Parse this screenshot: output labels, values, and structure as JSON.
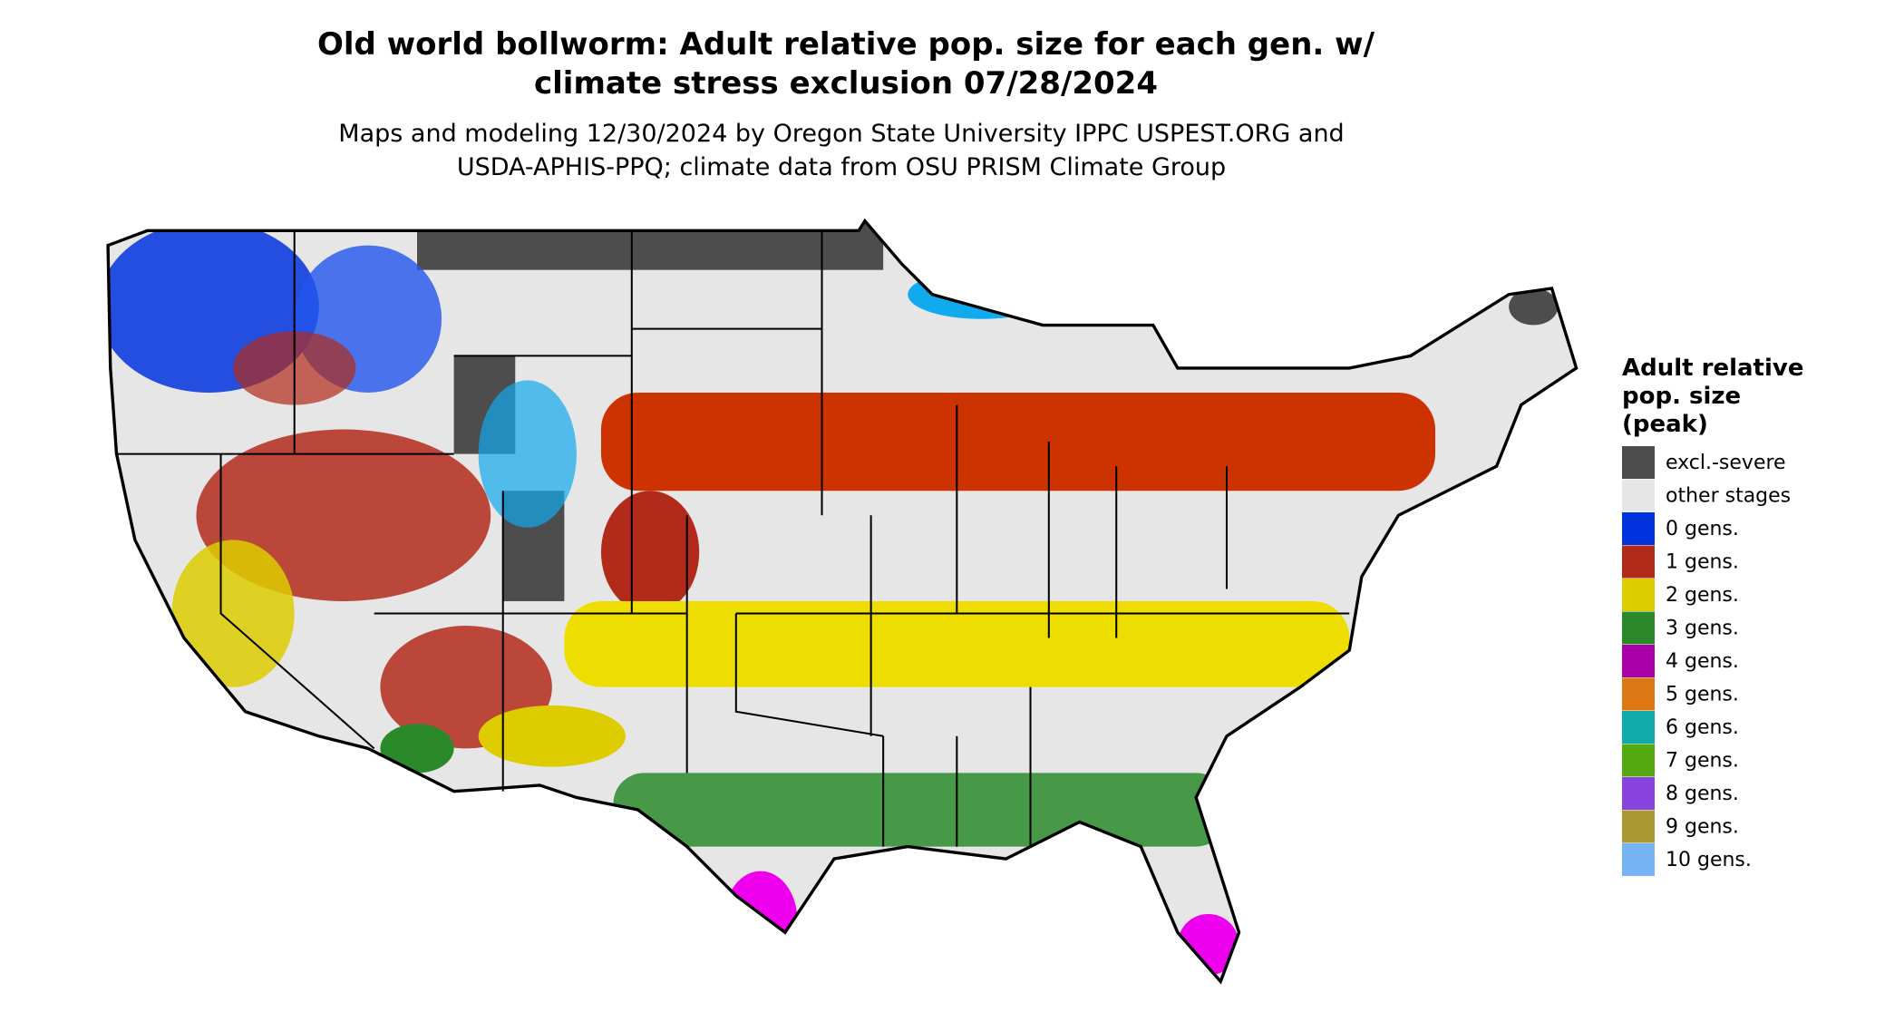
{
  "header": {
    "title_lines": [
      "Old world bollworm: Adult relative pop. size for each gen. w/",
      "climate stress exclusion 07/28/2024"
    ],
    "subtitle_lines": [
      "Maps and modeling 12/30/2024 by Oregon State University IPPC USPEST.ORG and",
      "USDA-APHIS-PPQ; climate data from OSU PRISM Climate Group"
    ]
  },
  "legend": {
    "title_lines": [
      "Adult relative",
      "pop. size",
      "(peak)"
    ],
    "items": [
      {
        "label": "excl.-severe",
        "color": "#4d4d4d"
      },
      {
        "label": "other stages",
        "color": "#e6e6e6"
      },
      {
        "label": "0 gens.",
        "color": "#0033dd"
      },
      {
        "label": "1 gens.",
        "color": "#b22a1a"
      },
      {
        "label": "2 gens.",
        "color": "#ddcc00"
      },
      {
        "label": "3 gens.",
        "color": "#2a8a2a"
      },
      {
        "label": "4 gens.",
        "color": "#aa00aa"
      },
      {
        "label": "5 gens.",
        "color": "#dd7711"
      },
      {
        "label": "6 gens.",
        "color": "#11aaaa"
      },
      {
        "label": "7 gens.",
        "color": "#55aa11"
      },
      {
        "label": "8 gens.",
        "color": "#8844dd"
      },
      {
        "label": "9 gens.",
        "color": "#aa9933"
      },
      {
        "label": "10 gens.",
        "color": "#77b3f5"
      }
    ]
  }
}
